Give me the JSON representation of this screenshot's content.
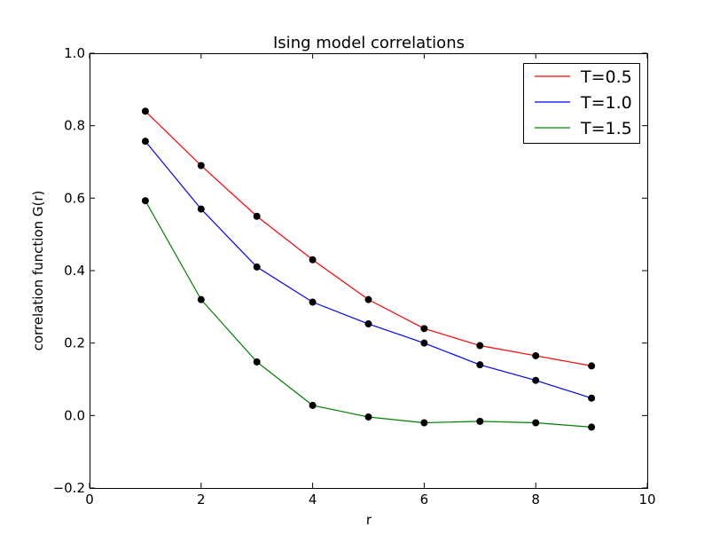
{
  "chart_data": {
    "type": "line",
    "title": "Ising model correlations",
    "xlabel": "r",
    "ylabel": "correlation function G(r)",
    "xlim": [
      0,
      10
    ],
    "ylim": [
      -0.2,
      1.0
    ],
    "x_ticks": [
      0,
      2,
      4,
      6,
      8,
      10
    ],
    "y_ticks": [
      -0.2,
      0.0,
      0.2,
      0.4,
      0.6,
      0.8,
      1.0
    ],
    "x_tick_labels": [
      "0",
      "2",
      "4",
      "6",
      "8",
      "10"
    ],
    "y_tick_labels": [
      "−0.2",
      "0.0",
      "0.2",
      "0.4",
      "0.6",
      "0.8",
      "1.0"
    ],
    "grid": false,
    "legend_position": "top-right",
    "x": [
      1,
      2,
      3,
      4,
      5,
      6,
      7,
      8,
      9
    ],
    "series": [
      {
        "name": "T=0.5",
        "color": "#ff0000",
        "values": [
          0.84,
          0.69,
          0.55,
          0.43,
          0.32,
          0.24,
          0.193,
          0.165,
          0.137
        ]
      },
      {
        "name": "T=1.0",
        "color": "#0000ff",
        "values": [
          0.757,
          0.57,
          0.41,
          0.313,
          0.253,
          0.2,
          0.14,
          0.097,
          0.048
        ]
      },
      {
        "name": "T=1.5",
        "color": "#008000",
        "values": [
          0.593,
          0.32,
          0.148,
          0.028,
          -0.004,
          -0.02,
          -0.016,
          -0.02,
          -0.032
        ]
      }
    ],
    "marker_color": "#000000"
  }
}
